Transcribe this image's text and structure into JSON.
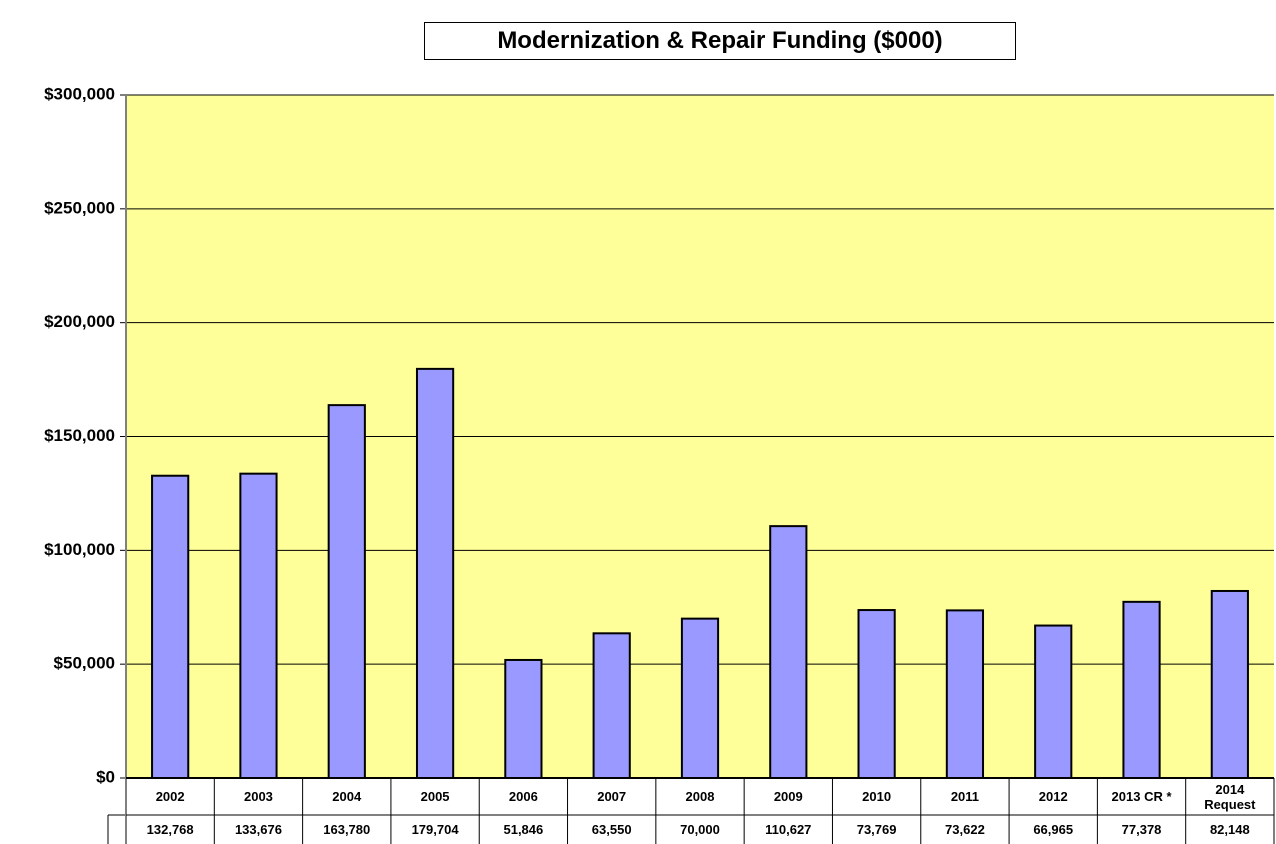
{
  "chart_data": {
    "type": "bar",
    "title": "Modernization & Repair Funding  ($000)",
    "categories": [
      "2002",
      "2003",
      "2004",
      "2005",
      "2006",
      "2007",
      "2008",
      "2009",
      "2010",
      "2011",
      "2012",
      "2013 CR *",
      "2014\nRequest"
    ],
    "values": [
      132768,
      133676,
      163780,
      179704,
      51846,
      63550,
      70000,
      110627,
      73769,
      73622,
      66965,
      77378,
      82148
    ],
    "value_labels": [
      "132,768",
      "133,676",
      "163,780",
      "179,704",
      "51,846",
      "63,550",
      "70,000",
      "110,627",
      "73,769",
      "73,622",
      "66,965",
      "77,378",
      "82,148"
    ],
    "color": "#9999ff",
    "ylim": [
      0,
      300000
    ],
    "yticks": [
      {
        "value": 0,
        "label": "$0"
      },
      {
        "value": 50000,
        "label": "$50,000"
      },
      {
        "value": 100000,
        "label": "$100,000"
      },
      {
        "value": 150000,
        "label": "$150,000"
      },
      {
        "value": 200000,
        "label": "$200,000"
      },
      {
        "value": 250000,
        "label": "$250,000"
      },
      {
        "value": 300000,
        "label": "$300,000"
      }
    ],
    "grid": true
  }
}
